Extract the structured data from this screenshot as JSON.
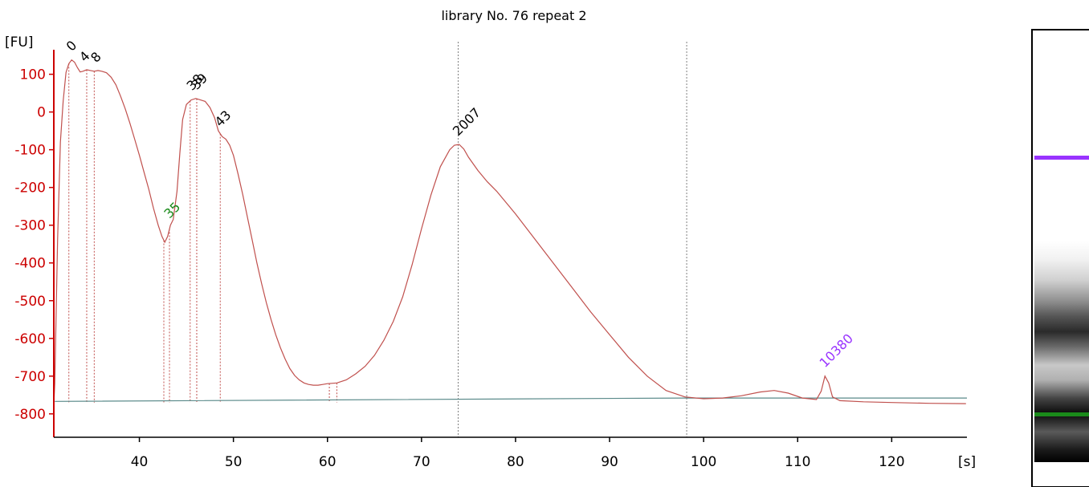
{
  "chart_data": {
    "type": "line",
    "title": "library No. 76 repeat 2",
    "ylabel": "[FU]",
    "xlabel": "[s]",
    "xlim": [
      30.9,
      128
    ],
    "ylim": [
      -862,
      165
    ],
    "x_ticks": [
      40,
      50,
      60,
      70,
      80,
      90,
      100,
      110,
      120
    ],
    "x_tick_labels": [
      "40",
      "50",
      "60",
      "70",
      "80",
      "90",
      "100",
      "110",
      "120"
    ],
    "y_ticks": [
      100,
      0,
      -100,
      -200,
      -300,
      -400,
      -500,
      -600,
      -700,
      -800
    ],
    "y_tick_labels": [
      "100",
      "0",
      "-100",
      "-200",
      "-300",
      "-400",
      "-500",
      "-600",
      "-700",
      "-800"
    ],
    "grid": false,
    "colors": {
      "trace": "#c0504d",
      "axis": "#cc0000",
      "baseline": "#5a8a8a",
      "marker_line": "#7f7f7f",
      "upper_marker": "#9933ff",
      "lower_marker": "#1a8a1a",
      "peak_label": "#000000"
    },
    "series": [
      {
        "values": [
          [
            30.9,
            -775
          ],
          [
            31.0,
            -720
          ],
          [
            31.3,
            -340
          ],
          [
            31.6,
            -80
          ],
          [
            31.9,
            30
          ],
          [
            32.2,
            105
          ],
          [
            32.5,
            128
          ],
          [
            32.8,
            138
          ],
          [
            33.1,
            132
          ],
          [
            33.4,
            118
          ],
          [
            33.7,
            106
          ],
          [
            34.0,
            108
          ],
          [
            34.4,
            112
          ],
          [
            34.8,
            110
          ],
          [
            35.2,
            108
          ],
          [
            35.6,
            110
          ],
          [
            36.0,
            108
          ],
          [
            36.5,
            104
          ],
          [
            37.0,
            92
          ],
          [
            37.5,
            72
          ],
          [
            38.0,
            42
          ],
          [
            38.5,
            8
          ],
          [
            39.0,
            -30
          ],
          [
            39.5,
            -72
          ],
          [
            40.0,
            -115
          ],
          [
            40.5,
            -160
          ],
          [
            41.0,
            -205
          ],
          [
            41.5,
            -255
          ],
          [
            42.0,
            -300
          ],
          [
            42.4,
            -330
          ],
          [
            42.7,
            -345
          ],
          [
            43.0,
            -330
          ],
          [
            43.3,
            -300
          ],
          [
            43.6,
            -285
          ],
          [
            44.0,
            -210
          ],
          [
            44.3,
            -110
          ],
          [
            44.6,
            -20
          ],
          [
            45.0,
            20
          ],
          [
            45.5,
            32
          ],
          [
            46.0,
            36
          ],
          [
            46.5,
            32
          ],
          [
            47.0,
            28
          ],
          [
            47.5,
            12
          ],
          [
            48.0,
            -15
          ],
          [
            48.4,
            -50
          ],
          [
            48.8,
            -65
          ],
          [
            49.2,
            -72
          ],
          [
            49.6,
            -88
          ],
          [
            50.0,
            -115
          ],
          [
            50.5,
            -165
          ],
          [
            51.0,
            -220
          ],
          [
            51.5,
            -280
          ],
          [
            52.0,
            -340
          ],
          [
            52.5,
            -400
          ],
          [
            53.0,
            -455
          ],
          [
            53.5,
            -505
          ],
          [
            54.0,
            -550
          ],
          [
            54.5,
            -590
          ],
          [
            55.0,
            -625
          ],
          [
            55.5,
            -655
          ],
          [
            56.0,
            -680
          ],
          [
            56.5,
            -698
          ],
          [
            57.0,
            -710
          ],
          [
            57.5,
            -718
          ],
          [
            58.0,
            -722
          ],
          [
            58.5,
            -724
          ],
          [
            59.0,
            -724
          ],
          [
            59.5,
            -722
          ],
          [
            60.0,
            -720
          ],
          [
            61.0,
            -718
          ],
          [
            62.0,
            -710
          ],
          [
            63.0,
            -694
          ],
          [
            64.0,
            -674
          ],
          [
            65.0,
            -645
          ],
          [
            66.0,
            -605
          ],
          [
            67.0,
            -555
          ],
          [
            68.0,
            -490
          ],
          [
            69.0,
            -405
          ],
          [
            70.0,
            -310
          ],
          [
            71.0,
            -220
          ],
          [
            72.0,
            -145
          ],
          [
            73.0,
            -100
          ],
          [
            73.5,
            -88
          ],
          [
            74.0,
            -86
          ],
          [
            74.5,
            -98
          ],
          [
            75.0,
            -120
          ],
          [
            76.0,
            -155
          ],
          [
            77.0,
            -185
          ],
          [
            78.0,
            -210
          ],
          [
            79.0,
            -240
          ],
          [
            80.0,
            -270
          ],
          [
            82.0,
            -335
          ],
          [
            84.0,
            -400
          ],
          [
            86.0,
            -465
          ],
          [
            88.0,
            -530
          ],
          [
            90.0,
            -590
          ],
          [
            92.0,
            -650
          ],
          [
            94.0,
            -700
          ],
          [
            96.0,
            -738
          ],
          [
            98.0,
            -755
          ],
          [
            100.0,
            -760
          ],
          [
            102.0,
            -758
          ],
          [
            104.0,
            -752
          ],
          [
            106.0,
            -742
          ],
          [
            107.5,
            -738
          ],
          [
            109.0,
            -745
          ],
          [
            110.5,
            -758
          ],
          [
            112.0,
            -762
          ],
          [
            112.5,
            -740
          ],
          [
            112.9,
            -700
          ],
          [
            113.3,
            -718
          ],
          [
            113.7,
            -755
          ],
          [
            114.5,
            -765
          ],
          [
            117.0,
            -768
          ],
          [
            120.0,
            -770
          ],
          [
            124.0,
            -772
          ],
          [
            127.9,
            -773
          ]
        ]
      }
    ],
    "peaks": [
      {
        "label": "0",
        "x": 32.8,
        "y": 138
      },
      {
        "label": "4",
        "x": 34.2,
        "y": 110
      },
      {
        "label": "8",
        "x": 35.4,
        "y": 108
      },
      {
        "label": "35",
        "x": 43.2,
        "y": -305
      },
      {
        "label": "38",
        "x": 45.6,
        "y": 34
      },
      {
        "label": "39",
        "x": 46.1,
        "y": 36
      },
      {
        "label": "43",
        "x": 48.6,
        "y": -62
      },
      {
        "label": "2007",
        "x": 73.9,
        "y": -86
      },
      {
        "label": "10380",
        "x": 112.9,
        "y": -700
      }
    ],
    "peak_drop_lines": [
      32.5,
      34.4,
      35.2,
      42.6,
      43.2,
      45.4,
      46.1,
      48.6,
      60.2,
      61.0
    ],
    "peak_label_colors": {
      "35": "#1a8a1a",
      "10380": "#9933ff"
    },
    "marker_lines": [
      73.9,
      98.2
    ],
    "baseline": [
      [
        31.0,
        -767
      ],
      [
        98.0,
        -758
      ],
      [
        128.0,
        -758
      ]
    ]
  }
}
